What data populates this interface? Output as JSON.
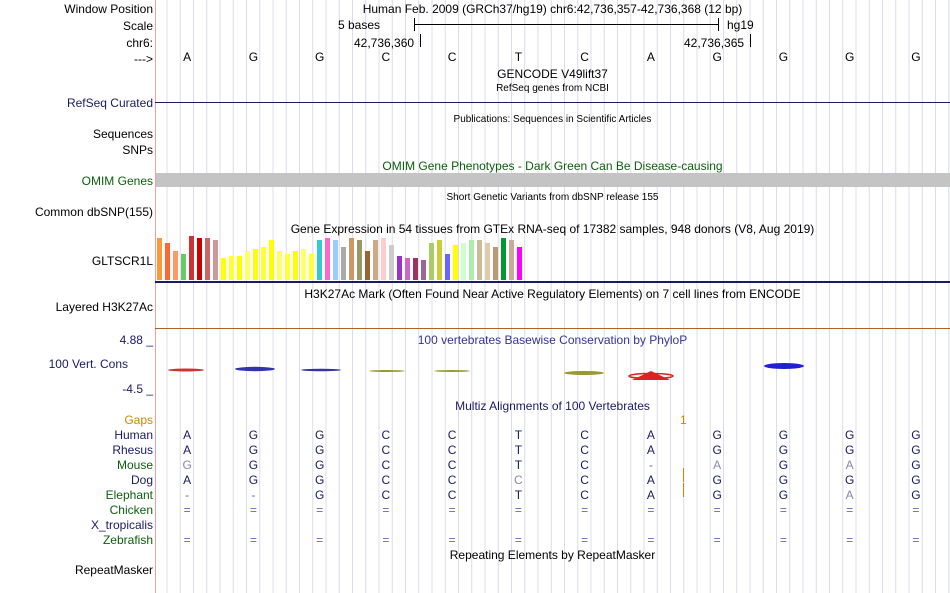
{
  "header": {
    "window_position_label": "Window Position",
    "window_position_value": "Human Feb. 2009 (GRCh37/hg19)   chr6:42,736,357-42,736,368 (12 bp)",
    "scale_label": "Scale",
    "scale_bases": "5 bases",
    "scale_assembly": "hg19",
    "chrom_label": "chr6:",
    "coord_left": "42,736,360",
    "coord_right": "42,736,365",
    "strand_label": "--->"
  },
  "bases": [
    "A",
    "G",
    "G",
    "C",
    "C",
    "T",
    "C",
    "A",
    "G",
    "G",
    "G",
    "G"
  ],
  "tracks": {
    "gencode_title": "GENCODE V49lift37",
    "refseq_sub": "RefSeq genes from NCBI",
    "refseq_label": "RefSeq Curated",
    "publications_title": "Publications: Sequences in Scientific Articles",
    "sequences_label": "Sequences",
    "snps_label": "SNPs",
    "omim_title": "OMIM Gene Phenotypes - Dark Green Can Be Disease-causing",
    "omim_label": "OMIM Genes",
    "dbsnp_title": "Short Genetic Variants from dbSNP release 155",
    "dbsnp_label": "Common dbSNP(155)",
    "gtex_title": "Gene Expression in 54 tissues from GTEx RNA-seq of 17382 samples, 948 donors (V8, Aug 2019)",
    "gtex_label": "GLTSCR1L",
    "h3k27ac_title": "H3K27Ac Mark (Often Found Near Active Regulatory Elements) on 7 cell lines from ENCODE",
    "h3k27ac_label": "Layered H3K27Ac",
    "phylop_title": "100 vertebrates Basewise Conservation by PhyloP",
    "phylop_max": "4.88 _",
    "phylop_label": "100 Vert. Cons",
    "phylop_min": "-4.5 _",
    "multiz_title": "Multiz Alignments of 100 Vertebrates",
    "gaps_label": "Gaps",
    "gaps_mark": "1",
    "repeat_title": "Repeating Elements by RepeatMasker",
    "repeat_label": "RepeatMasker"
  },
  "alignment": [
    {
      "species": "Human",
      "bases": [
        "A",
        "G",
        "G",
        "C",
        "C",
        "T",
        "C",
        "A",
        "G",
        "G",
        "G",
        "G"
      ]
    },
    {
      "species": "Rhesus",
      "bases": [
        "A",
        "G",
        "G",
        "C",
        "C",
        "T",
        "C",
        "A",
        "G",
        "G",
        "G",
        "G"
      ]
    },
    {
      "species": "Mouse",
      "bases": [
        "G",
        "G",
        "G",
        "C",
        "C",
        "T",
        "C",
        "-",
        "A",
        "G",
        "A",
        "G"
      ]
    },
    {
      "species": "Dog",
      "bases": [
        "A",
        "G",
        "G",
        "C",
        "C",
        "C",
        "C",
        "A",
        "G",
        "G",
        "G",
        "G"
      ]
    },
    {
      "species": "Elephant",
      "bases": [
        "-",
        "-",
        "G",
        "C",
        "C",
        "T",
        "C",
        "A",
        "G",
        "G",
        "A",
        "G"
      ]
    },
    {
      "species": "Chicken",
      "bases": [
        "=",
        "=",
        "=",
        "=",
        "=",
        "=",
        "=",
        "=",
        "=",
        "=",
        "=",
        "="
      ]
    },
    {
      "species": "X_tropicalis",
      "bases": [
        "",
        "",
        "",
        "",
        "",
        "",
        "",
        "",
        "",
        "",
        "",
        ""
      ]
    },
    {
      "species": "Zebrafish",
      "bases": [
        "=",
        "=",
        "=",
        "=",
        "=",
        "=",
        "=",
        "=",
        "=",
        "=",
        "=",
        "="
      ]
    }
  ],
  "species_colors": {
    "Human": "#1a1a66",
    "Rhesus": "#1a1a66",
    "Mouse": "#0b5e0b",
    "Dog": "#1a1a66",
    "Elephant": "#0b5e0b",
    "Chicken": "#0b5e0b",
    "X_tropicalis": "#1a1a66",
    "Zebrafish": "#0b5e0b"
  },
  "gtex_colors": [
    "#ff9933",
    "#ff6633",
    "#ff9966",
    "#66cc66",
    "#cc3333",
    "#cc0000",
    "#cc6666",
    "#cc9999",
    "#ffff00",
    "#ffff33",
    "#ffff00",
    "#ffff66",
    "#ffff00",
    "#ffff33",
    "#ffff00",
    "#ffff66",
    "#ffff33",
    "#ffff00",
    "#ffff66",
    "#ffff33",
    "#33cccc",
    "#ff66cc",
    "#99ccff",
    "#aaaaaa",
    "#cc9966",
    "#999966",
    "#996633",
    "#ccaa88",
    "#ffcccc",
    "#cccccc",
    "#9933cc",
    "#cc66cc",
    "#993366",
    "#996699",
    "#aacc66",
    "#cccc33",
    "#6666ff",
    "#ffff00",
    "#ccffcc",
    "#aaeeaa",
    "#ccbb99",
    "#ddccaa",
    "#bb9977",
    "#009933",
    "#ccaa99",
    "#ff00ff"
  ],
  "gtex_values": [
    0.95,
    0.85,
    0.65,
    0.6,
    1.0,
    0.95,
    0.95,
    0.9,
    0.5,
    0.55,
    0.55,
    0.65,
    0.7,
    0.75,
    0.9,
    0.65,
    0.6,
    0.65,
    0.7,
    0.6,
    0.9,
    0.95,
    0.9,
    0.75,
    0.95,
    0.9,
    0.65,
    0.9,
    0.95,
    0.8,
    0.55,
    0.5,
    0.5,
    0.45,
    0.85,
    0.9,
    0.6,
    0.8,
    0.85,
    0.9,
    0.9,
    0.85,
    0.75,
    0.95,
    0.9,
    0.75
  ]
}
